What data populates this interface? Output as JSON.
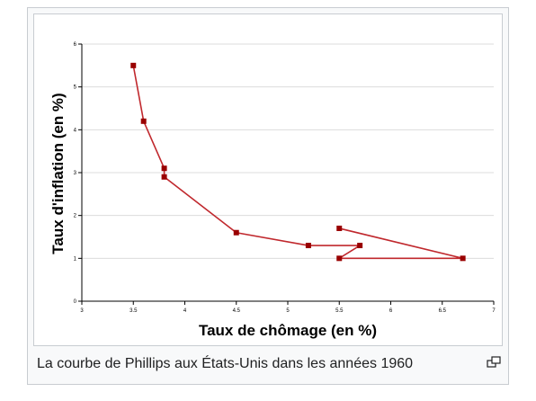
{
  "caption": "La courbe de Phillips aux États-Unis dans les années 1960",
  "icons": {
    "enlarge": "magnify-clip-icon"
  },
  "colors": {
    "line": "#c0282d",
    "marker": "#990000",
    "grid": "#dcdcdc"
  },
  "chart_data": {
    "type": "line",
    "title": "",
    "xlabel": "Taux de chômage (en %)",
    "ylabel": "Taux d'inflation (en %)",
    "xlim": [
      3,
      7
    ],
    "ylim": [
      0,
      6
    ],
    "xticks": [
      "3",
      "3.5",
      "4",
      "4.5",
      "5",
      "5.5",
      "6",
      "6.5",
      "7"
    ],
    "yticks": [
      "0",
      "1",
      "2",
      "3",
      "4",
      "5",
      "6"
    ],
    "grid": "horizontal",
    "series": [
      {
        "points": [
          {
            "x": 3.5,
            "y": 5.5
          },
          {
            "x": 3.6,
            "y": 4.2
          },
          {
            "x": 3.8,
            "y": 3.1
          },
          {
            "x": 3.8,
            "y": 2.9
          },
          {
            "x": 4.5,
            "y": 1.6
          },
          {
            "x": 5.2,
            "y": 1.3
          },
          {
            "x": 5.7,
            "y": 1.3
          },
          {
            "x": 5.5,
            "y": 1.0
          },
          {
            "x": 6.7,
            "y": 1.0
          },
          {
            "x": 5.5,
            "y": 1.7
          }
        ]
      }
    ]
  }
}
